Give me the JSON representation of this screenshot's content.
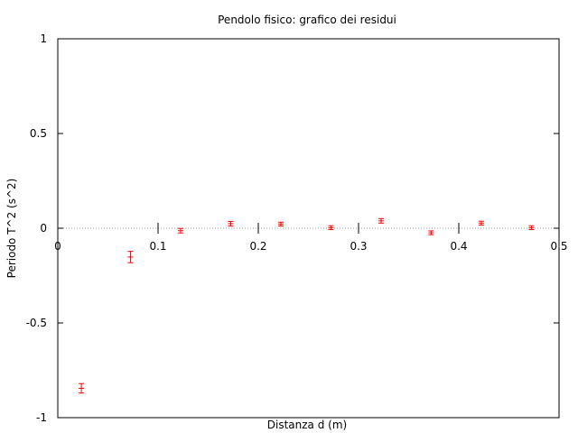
{
  "chart_data": {
    "type": "scatter",
    "title": "Pendolo fisico: grafico dei residui",
    "xlabel": "Distanza d (m)",
    "ylabel": "Periodo T^2 (s^2)",
    "xlim": [
      0,
      0.5
    ],
    "ylim": [
      -1,
      1
    ],
    "xticks": [
      0,
      0.1,
      0.2,
      0.3,
      0.4,
      0.5
    ],
    "xtick_labels": [
      "0",
      "0.1",
      "0.2",
      "0.3",
      "0.4",
      "0.5"
    ],
    "yticks": [
      -1,
      -0.5,
      0,
      0.5,
      1
    ],
    "ytick_labels": [
      "-1",
      "-0.5",
      "0",
      "0.5",
      "1"
    ],
    "zero_line": true,
    "grid": false,
    "series": [
      {
        "color": "#ff0000",
        "points": [
          {
            "x": 0.0235,
            "y": -0.845,
            "err": 0.025
          },
          {
            "x": 0.0725,
            "y": -0.152,
            "err": 0.03
          },
          {
            "x": 0.1225,
            "y": -0.013,
            "err": 0.012
          },
          {
            "x": 0.1725,
            "y": 0.024,
            "err": 0.012
          },
          {
            "x": 0.2225,
            "y": 0.022,
            "err": 0.01
          },
          {
            "x": 0.2725,
            "y": 0.003,
            "err": 0.01
          },
          {
            "x": 0.3225,
            "y": 0.039,
            "err": 0.012
          },
          {
            "x": 0.3725,
            "y": -0.024,
            "err": 0.01
          },
          {
            "x": 0.4225,
            "y": 0.027,
            "err": 0.01
          },
          {
            "x": 0.4725,
            "y": 0.003,
            "err": 0.01
          }
        ]
      }
    ]
  }
}
